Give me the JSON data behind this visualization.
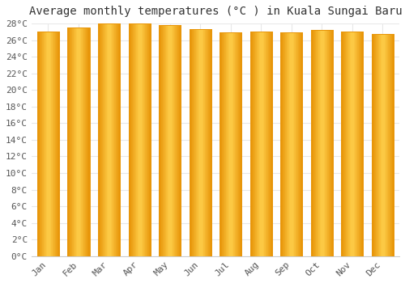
{
  "title": "Average monthly temperatures (°C ) in Kuala Sungai Baru",
  "months": [
    "Jan",
    "Feb",
    "Mar",
    "Apr",
    "May",
    "Jun",
    "Jul",
    "Aug",
    "Sep",
    "Oct",
    "Nov",
    "Dec"
  ],
  "values": [
    27.0,
    27.5,
    28.0,
    28.0,
    27.8,
    27.3,
    26.9,
    27.0,
    26.9,
    27.2,
    27.0,
    26.7
  ],
  "bar_color_center": "#FFD04C",
  "bar_color_edge": "#E8960A",
  "background_color": "#FFFFFF",
  "plot_bg_color": "#FFFFFF",
  "ylim": [
    0,
    28
  ],
  "ytick_step": 2,
  "title_fontsize": 10,
  "tick_fontsize": 8,
  "grid_color": "#E8E8E8",
  "bar_width": 0.72
}
